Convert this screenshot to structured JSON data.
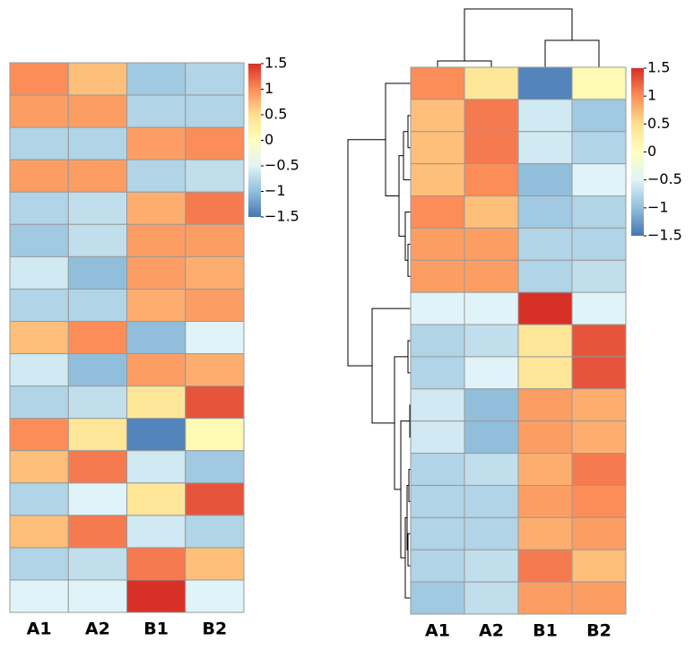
{
  "chart_data": [
    {
      "type": "heatmap",
      "columns": [
        "A1",
        "A2",
        "B1",
        "B2"
      ],
      "values": [
        [
          1.0,
          0.7,
          -0.9,
          -0.8
        ],
        [
          0.9,
          0.9,
          -0.8,
          -0.8
        ],
        [
          -0.8,
          -0.8,
          0.9,
          1.0
        ],
        [
          0.9,
          0.9,
          -0.8,
          -0.7
        ],
        [
          -0.8,
          -0.7,
          0.8,
          1.1
        ],
        [
          -0.9,
          -0.7,
          0.9,
          0.9
        ],
        [
          -0.6,
          -1.0,
          0.9,
          0.8
        ],
        [
          -0.8,
          -0.8,
          0.8,
          0.9
        ],
        [
          0.7,
          1.0,
          -1.0,
          -0.5
        ],
        [
          -0.6,
          -1.0,
          0.9,
          0.8
        ],
        [
          -0.8,
          -0.7,
          0.4,
          1.3
        ],
        [
          1.0,
          0.4,
          -1.4,
          0.1
        ],
        [
          0.7,
          1.1,
          -0.6,
          -0.9
        ],
        [
          -0.8,
          -0.5,
          0.4,
          1.3
        ],
        [
          0.7,
          1.1,
          -0.6,
          -0.8
        ],
        [
          -0.8,
          -0.7,
          1.1,
          0.7
        ],
        [
          -0.5,
          -0.5,
          1.5,
          -0.5
        ]
      ],
      "zlim": [
        -1.5,
        1.5
      ],
      "zticks": [
        1.5,
        1,
        0.5,
        0,
        {
          "value": -0.5,
          "label": "−0.5"
        },
        {
          "value": -1,
          "label": "−1"
        },
        {
          "value": -1.5,
          "label": "−1.5"
        }
      ],
      "colorscale": [
        "#4575b4",
        "#91bfdb",
        "#e0f3f8",
        "#ffffbf",
        "#fee090",
        "#fc8d59",
        "#d73027"
      ]
    },
    {
      "type": "heatmap",
      "columns": [
        "A1",
        "A2",
        "B1",
        "B2"
      ],
      "values": [
        [
          1.0,
          0.4,
          -1.4,
          0.1
        ],
        [
          0.7,
          1.1,
          -0.6,
          -0.9
        ],
        [
          0.7,
          1.1,
          -0.6,
          -0.8
        ],
        [
          0.7,
          1.0,
          -1.0,
          -0.5
        ],
        [
          1.0,
          0.7,
          -0.9,
          -0.8
        ],
        [
          0.9,
          0.9,
          -0.8,
          -0.8
        ],
        [
          0.9,
          0.9,
          -0.8,
          -0.7
        ],
        [
          -0.5,
          -0.5,
          1.5,
          -0.5
        ],
        [
          -0.8,
          -0.7,
          0.4,
          1.3
        ],
        [
          -0.8,
          -0.5,
          0.4,
          1.3
        ],
        [
          -0.6,
          -1.0,
          0.9,
          0.8
        ],
        [
          -0.6,
          -1.0,
          0.9,
          0.8
        ],
        [
          -0.8,
          -0.7,
          0.8,
          1.1
        ],
        [
          -0.8,
          -0.8,
          0.9,
          1.0
        ],
        [
          -0.8,
          -0.8,
          0.8,
          0.9
        ],
        [
          -0.8,
          -0.7,
          1.1,
          0.7
        ],
        [
          -0.9,
          -0.7,
          0.9,
          0.9
        ]
      ],
      "zlim": [
        -1.5,
        1.5
      ],
      "zticks": [
        1.5,
        1,
        0.5,
        0,
        {
          "value": -0.5,
          "label": "−0.5"
        },
        {
          "value": -1,
          "label": "−1"
        },
        {
          "value": -1.5,
          "label": "−1.5"
        }
      ],
      "colorscale": [
        "#4575b4",
        "#91bfdb",
        "#e0f3f8",
        "#ffffbf",
        "#fee090",
        "#fc8d59",
        "#d73027"
      ]
    }
  ]
}
